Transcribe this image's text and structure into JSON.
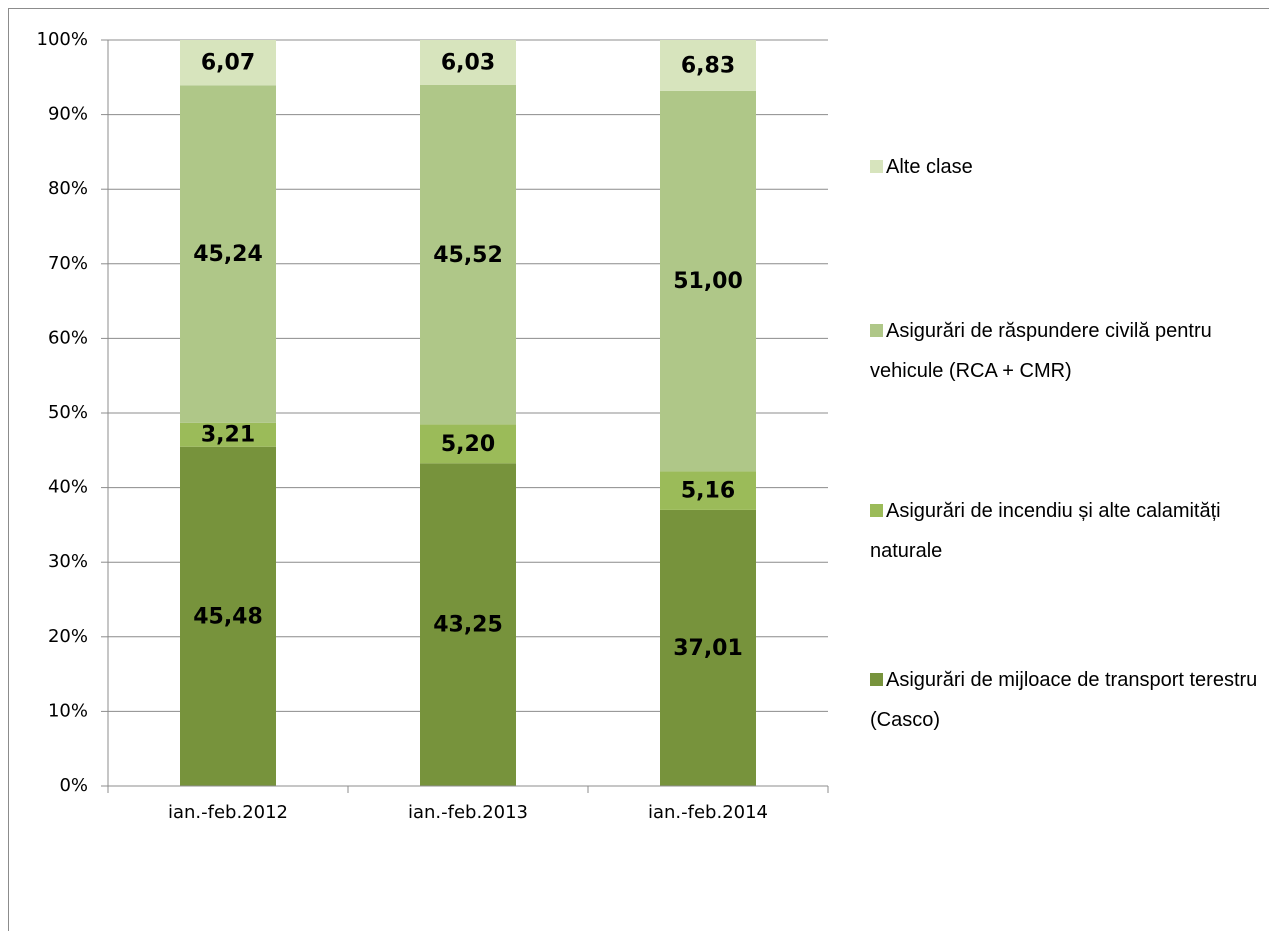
{
  "chart_data": {
    "type": "stacked_bar",
    "categories": [
      "ian.-feb.2012",
      "ian.-feb.2013",
      "ian.-feb.2014"
    ],
    "series": [
      {
        "name": "Asigurări de mijloace de transport terestru (Casco)",
        "color": "#77933c",
        "values": [
          45.48,
          43.25,
          37.01
        ],
        "value_labels": [
          "45,48",
          "43,25",
          "37,01"
        ]
      },
      {
        "name": "Asigurări de incendiu și alte calamități naturale",
        "color": "#9bbb59",
        "values": [
          3.21,
          5.2,
          5.16
        ],
        "value_labels": [
          "3,21",
          "5,20",
          "5,16"
        ]
      },
      {
        "name": "Asigurări de răspundere civilă pentru vehicule (RCA + CMR)",
        "color": "#afc788",
        "values": [
          45.24,
          45.52,
          51.0
        ],
        "value_labels": [
          "45,24",
          "45,52",
          "51,00"
        ]
      },
      {
        "name": "Alte clase",
        "color": "#d7e4bd",
        "values": [
          6.07,
          6.03,
          6.83
        ],
        "value_labels": [
          "6,07",
          "6,03",
          "6,83"
        ]
      }
    ],
    "ylim": [
      0,
      100
    ],
    "yticks": [
      {
        "value": 0,
        "label": "0%"
      },
      {
        "value": 10,
        "label": "10%"
      },
      {
        "value": 20,
        "label": "20%"
      },
      {
        "value": 30,
        "label": "30%"
      },
      {
        "value": 40,
        "label": "40%"
      },
      {
        "value": 50,
        "label": "50%"
      },
      {
        "value": 60,
        "label": "60%"
      },
      {
        "value": 70,
        "label": "70%"
      },
      {
        "value": 80,
        "label": "80%"
      },
      {
        "value": 90,
        "label": "90%"
      },
      {
        "value": 100,
        "label": "100%"
      }
    ],
    "grid": true,
    "legend": "right"
  }
}
